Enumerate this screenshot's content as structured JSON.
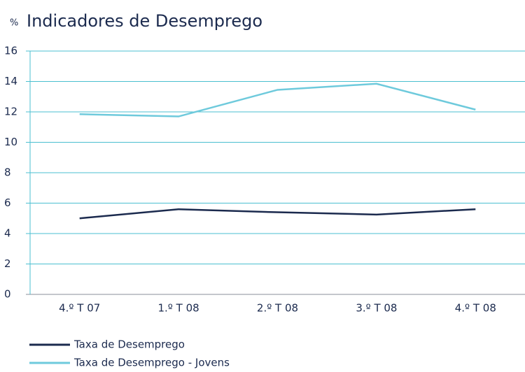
{
  "chart_data": {
    "type": "line",
    "title": "Indicadores de Desemprego",
    "y_label": "%",
    "categories": [
      "4.º T 07",
      "1.º T 08",
      "2.º T 08",
      "3.º T 08",
      "4.º T 08"
    ],
    "series": [
      {
        "name": "Taxa de Desemprego",
        "color": "#1b2a4e",
        "values": [
          5.0,
          5.6,
          5.4,
          5.25,
          5.6
        ]
      },
      {
        "name": "Taxa de Desemprego - Jovens",
        "color": "#6ecadc",
        "values": [
          11.85,
          11.7,
          13.45,
          13.85,
          12.15
        ]
      }
    ],
    "ylim": [
      0,
      16
    ],
    "yticks": [
      0,
      2,
      4,
      6,
      8,
      10,
      12,
      14,
      16
    ],
    "grid": true,
    "legend": "bottom-left"
  }
}
